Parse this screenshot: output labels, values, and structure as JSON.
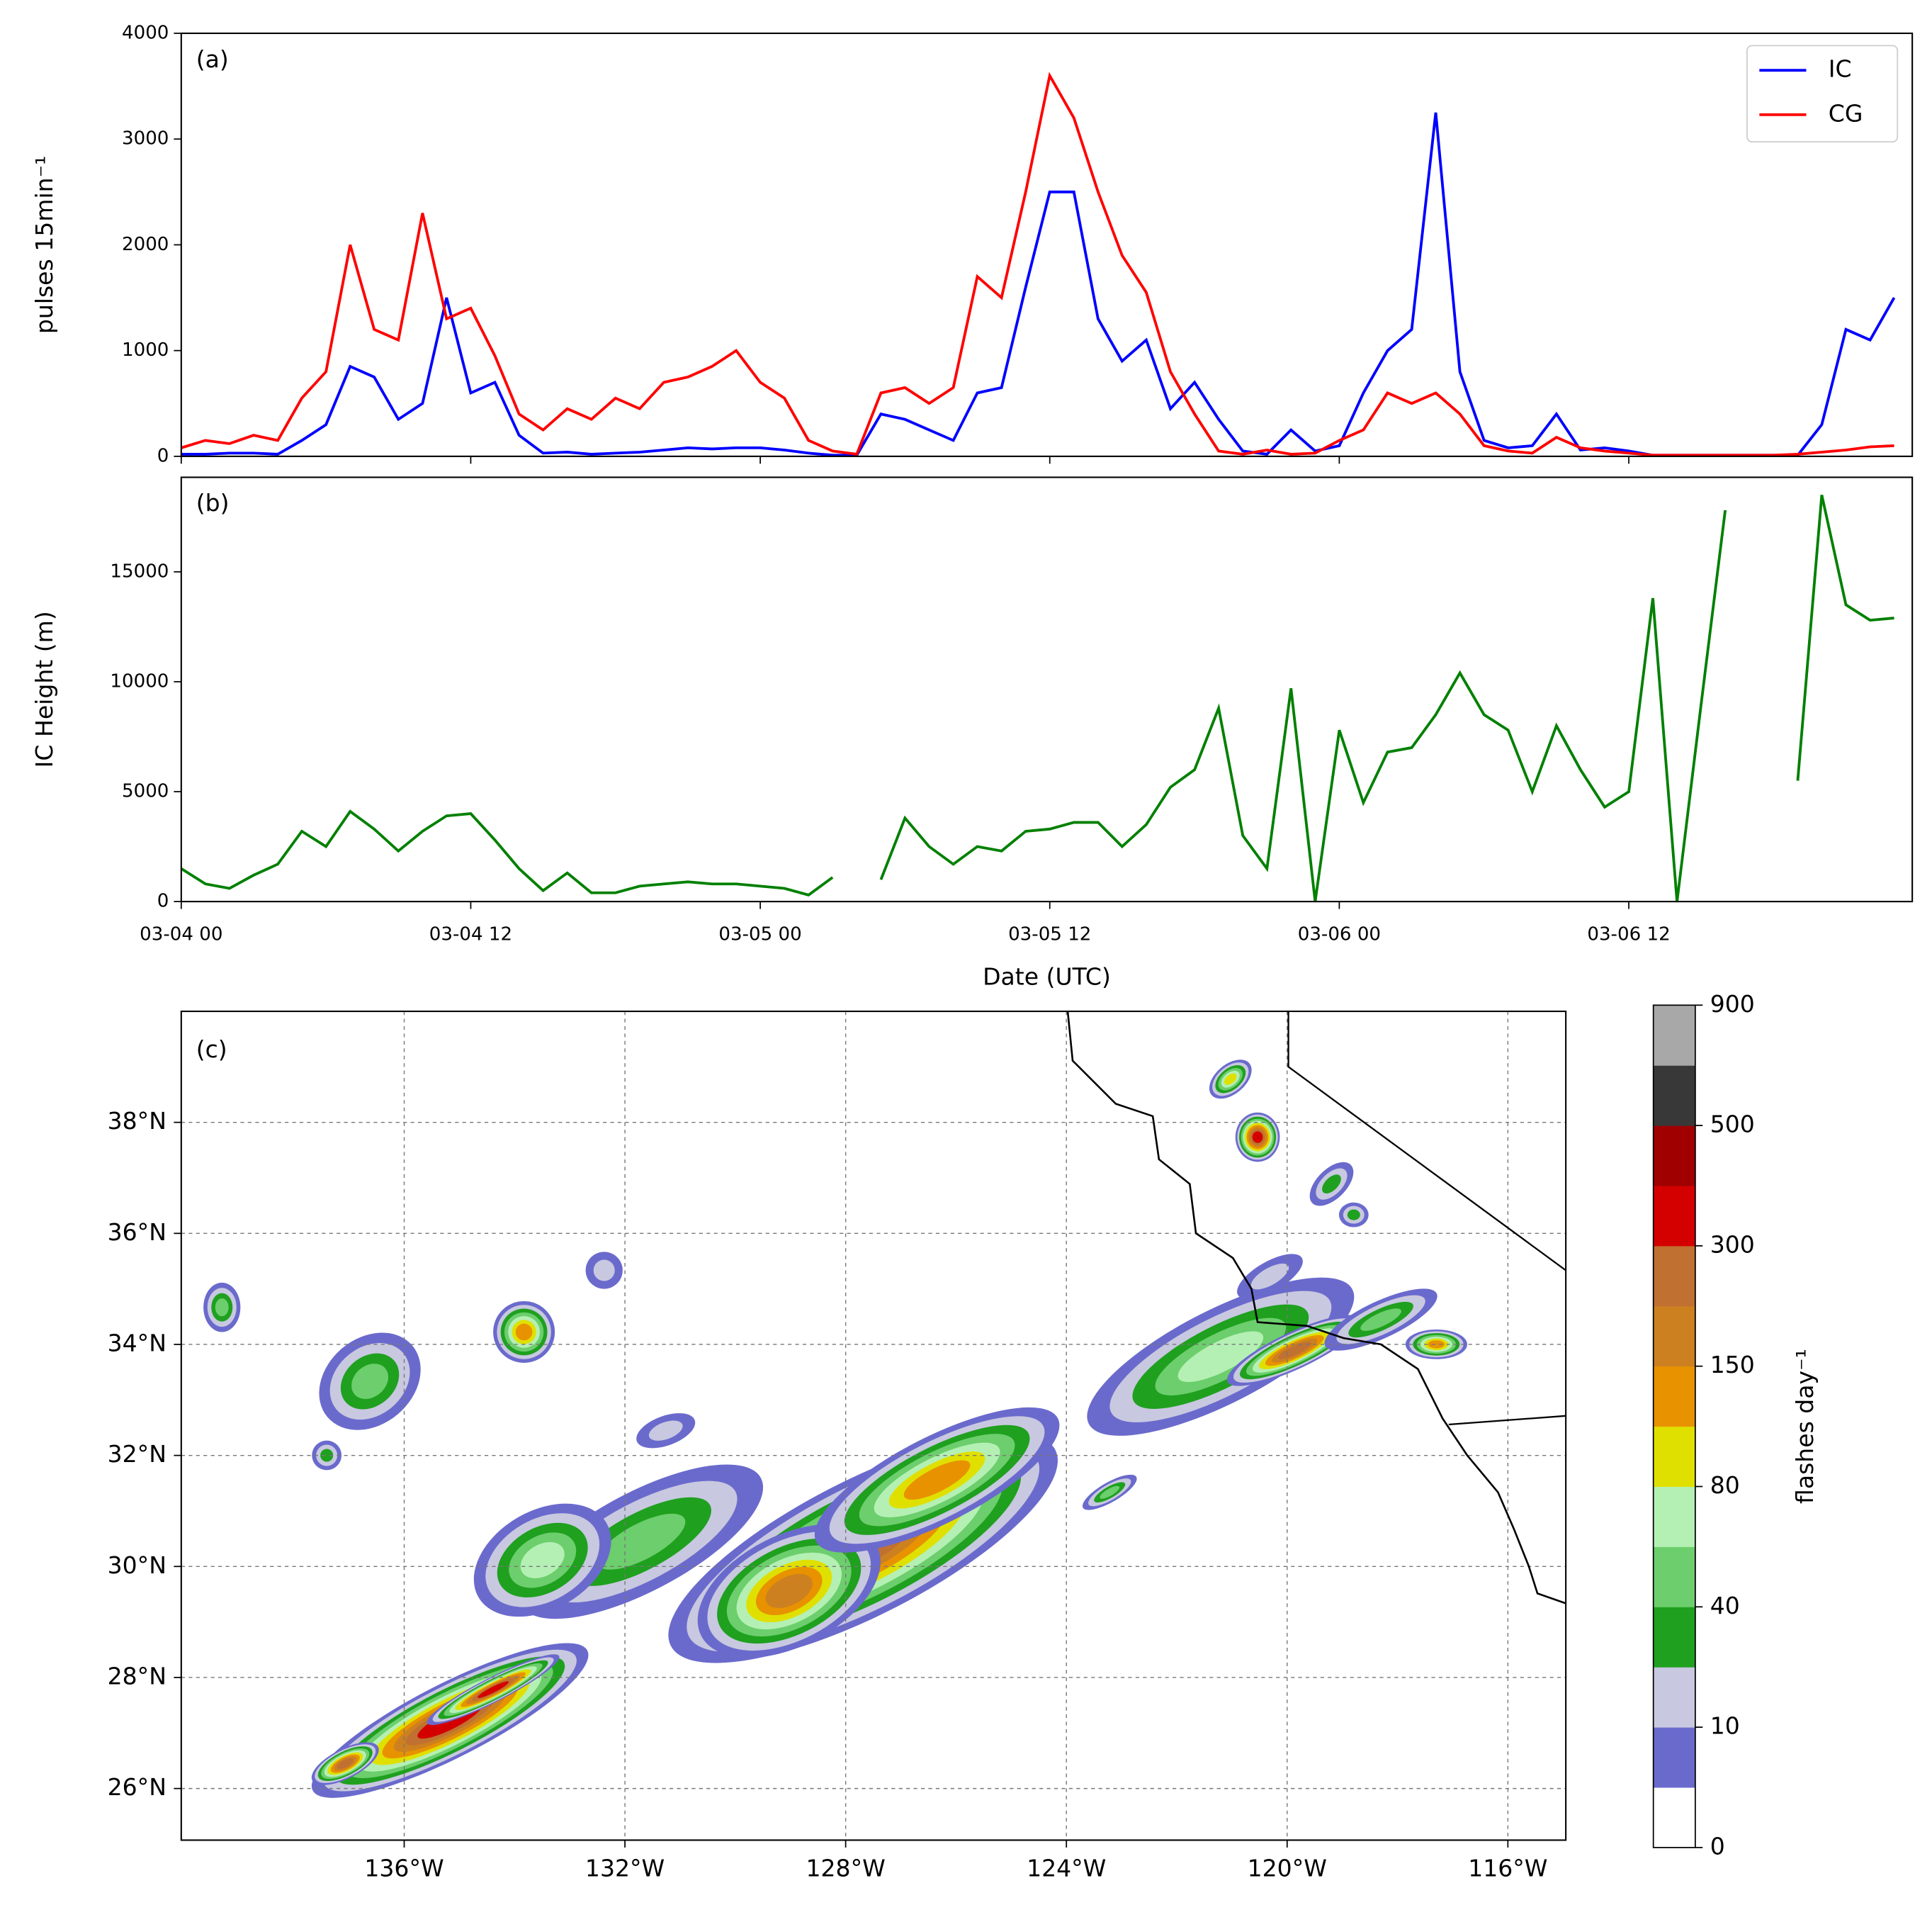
{
  "chart_data": [
    {
      "type": "line",
      "title": "(a)",
      "ylabel": "pulses 15min⁻¹",
      "x": [
        "03-04 00",
        "03-04 01",
        "03-04 02",
        "03-04 03",
        "03-04 04",
        "03-04 05",
        "03-04 06",
        "03-04 07",
        "03-04 08",
        "03-04 09",
        "03-04 10",
        "03-04 11",
        "03-04 12",
        "03-04 13",
        "03-04 14",
        "03-04 15",
        "03-04 16",
        "03-04 17",
        "03-04 18",
        "03-04 19",
        "03-04 20",
        "03-04 21",
        "03-04 22",
        "03-04 23",
        "03-05 00",
        "03-05 01",
        "03-05 02",
        "03-05 03",
        "03-05 04",
        "03-05 05",
        "03-05 06",
        "03-05 07",
        "03-05 08",
        "03-05 09",
        "03-05 10",
        "03-05 11",
        "03-05 12",
        "03-05 13",
        "03-05 14",
        "03-05 15",
        "03-05 16",
        "03-05 17",
        "03-05 18",
        "03-05 19",
        "03-05 20",
        "03-05 21",
        "03-05 22",
        "03-05 23",
        "03-06 00",
        "03-06 01",
        "03-06 02",
        "03-06 03",
        "03-06 04",
        "03-06 05",
        "03-06 06",
        "03-06 07",
        "03-06 08",
        "03-06 09",
        "03-06 10",
        "03-06 11",
        "03-06 12",
        "03-06 13",
        "03-06 14",
        "03-06 15",
        "03-06 16",
        "03-06 17",
        "03-06 18",
        "03-06 19",
        "03-06 20",
        "03-06 21",
        "03-06 22",
        "03-06 23"
      ],
      "series": [
        {
          "name": "IC",
          "color": "#0000ff",
          "values": [
            20,
            20,
            30,
            30,
            20,
            150,
            300,
            850,
            750,
            350,
            500,
            1500,
            600,
            700,
            200,
            30,
            40,
            20,
            30,
            40,
            60,
            80,
            70,
            80,
            80,
            60,
            30,
            10,
            10,
            400,
            350,
            250,
            150,
            600,
            650,
            1600,
            2500,
            2500,
            1300,
            900,
            1100,
            450,
            700,
            350,
            50,
            20,
            250,
            50,
            100,
            600,
            1000,
            1200,
            3250,
            800,
            150,
            80,
            100,
            400,
            60,
            80,
            50,
            10,
            10,
            10,
            10,
            10,
            10,
            10,
            300,
            1200,
            1100,
            1500
          ]
        },
        {
          "name": "CG",
          "color": "#ff0000",
          "values": [
            80,
            150,
            120,
            200,
            150,
            550,
            800,
            2000,
            1200,
            1100,
            2300,
            1300,
            1400,
            950,
            400,
            250,
            450,
            350,
            550,
            450,
            700,
            750,
            850,
            1000,
            700,
            550,
            150,
            50,
            20,
            600,
            650,
            500,
            650,
            1700,
            1500,
            2500,
            3600,
            3200,
            2500,
            1900,
            1550,
            800,
            400,
            50,
            20,
            60,
            20,
            30,
            150,
            250,
            600,
            500,
            600,
            400,
            100,
            50,
            30,
            180,
            80,
            50,
            30,
            10,
            10,
            10,
            10,
            10,
            10,
            20,
            40,
            60,
            90,
            100
          ]
        }
      ],
      "xlim": [
        "03-04 00",
        "03-06 23:45"
      ],
      "ylim": [
        0,
        4000
      ],
      "yticks": [
        0,
        1000,
        2000,
        3000,
        4000
      ],
      "legend": "upper right"
    },
    {
      "type": "line",
      "title": "(b)",
      "xlabel": "Date (UTC)",
      "ylabel": "IC Height (m)",
      "color": "#008000",
      "x": [
        "03-04 00",
        "03-04 01",
        "03-04 02",
        "03-04 03",
        "03-04 04",
        "03-04 05",
        "03-04 06",
        "03-04 07",
        "03-04 08",
        "03-04 09",
        "03-04 10",
        "03-04 11",
        "03-04 12",
        "03-04 13",
        "03-04 14",
        "03-04 15",
        "03-04 16",
        "03-04 17",
        "03-04 18",
        "03-04 19",
        "03-04 20",
        "03-04 21",
        "03-04 22",
        "03-04 23",
        "03-05 00",
        "03-05 01",
        "03-05 02",
        "03-05 03",
        "03-05 04",
        "03-05 05",
        "03-05 06",
        "03-05 07",
        "03-05 08",
        "03-05 09",
        "03-05 10",
        "03-05 11",
        "03-05 12",
        "03-05 13",
        "03-05 14",
        "03-05 15",
        "03-05 16",
        "03-05 17",
        "03-05 18",
        "03-05 19",
        "03-05 20",
        "03-05 21",
        "03-05 22",
        "03-05 23",
        "03-06 00",
        "03-06 01",
        "03-06 02",
        "03-06 03",
        "03-06 04",
        "03-06 05",
        "03-06 06",
        "03-06 07",
        "03-06 08",
        "03-06 09",
        "03-06 10",
        "03-06 11",
        "03-06 12",
        "03-06 13",
        "03-06 14",
        "03-06 15",
        "03-06 16",
        "03-06 17",
        "03-06 18",
        "03-06 19",
        "03-06 20",
        "03-06 21",
        "03-06 22",
        "03-06 23"
      ],
      "values": [
        1500,
        800,
        600,
        1200,
        1700,
        3200,
        2500,
        4100,
        3300,
        2300,
        3200,
        3900,
        4000,
        2800,
        1500,
        500,
        1300,
        400,
        400,
        700,
        800,
        900,
        800,
        800,
        700,
        600,
        300,
        1100,
        null,
        1000,
        3800,
        2500,
        1700,
        2500,
        2300,
        3200,
        3300,
        3600,
        3600,
        2500,
        3500,
        5200,
        6000,
        8800,
        3000,
        1500,
        9700,
        0,
        7800,
        4500,
        6800,
        7000,
        8500,
        10400,
        8500,
        7800,
        5000,
        8000,
        6000,
        4300,
        5000,
        13800,
        0,
        9000,
        17800,
        null,
        null,
        5500,
        18500,
        13500,
        12800,
        12900
      ],
      "xlim": [
        "03-04 00",
        "03-06 23:45"
      ],
      "xticks": [
        "03-04 00",
        "03-04 12",
        "03-05 00",
        "03-05 12",
        "03-06 00",
        "03-06 12"
      ],
      "ylim": [
        0,
        19300
      ],
      "yticks": [
        0,
        5000,
        10000,
        15000
      ]
    },
    {
      "type": "map",
      "title": "(c)",
      "xlim": [
        -140.04,
        -114.95
      ],
      "ylim": [
        25.07,
        40
      ],
      "xticks": [
        {
          "value": -136,
          "label": "136°W"
        },
        {
          "value": -132,
          "label": "132°W"
        },
        {
          "value": -128,
          "label": "128°W"
        },
        {
          "value": -124,
          "label": "124°W"
        },
        {
          "value": -120,
          "label": "120°W"
        },
        {
          "value": -116,
          "label": "116°W"
        }
      ],
      "yticks": [
        {
          "value": 26,
          "label": "26°N"
        },
        {
          "value": 28,
          "label": "28°N"
        },
        {
          "value": 30,
          "label": "30°N"
        },
        {
          "value": 32,
          "label": "32°N"
        },
        {
          "value": 34,
          "label": "34°N"
        },
        {
          "value": 36,
          "label": "36°N"
        },
        {
          "value": 38,
          "label": "38°N"
        }
      ],
      "grid": true,
      "colorbar": {
        "label": "flashes day⁻¹",
        "colors": [
          "#ffffff",
          "#6a6acd",
          "#c8c8e0",
          "#1fa01f",
          "#6cce6c",
          "#b4f0b4",
          "#e0e000",
          "#e89200",
          "#cc8020",
          "#c07030",
          "#d40000",
          "#a00000",
          "#383838",
          "#a8a8a8"
        ],
        "ticks": [
          0,
          10,
          40,
          80,
          150,
          300,
          500,
          900
        ]
      }
    }
  ]
}
